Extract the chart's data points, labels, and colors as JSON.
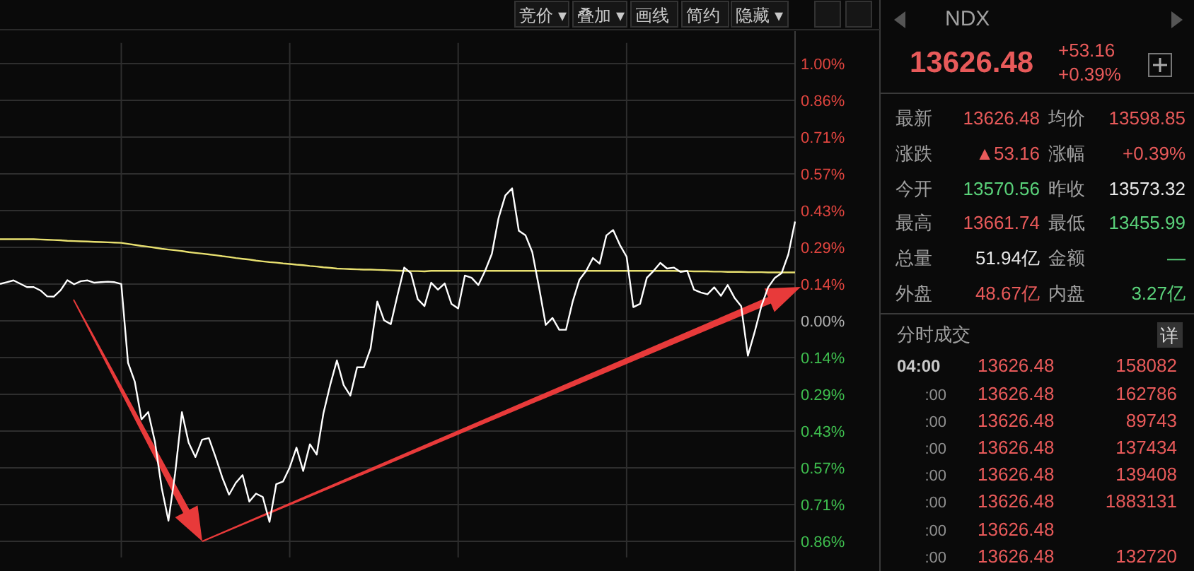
{
  "chart_data": [
    {
      "type": "line",
      "ylim": [
        -0.92,
        1.08
      ],
      "categories": [
        null,
        null,
        null,
        null,
        null,
        null,
        null,
        null,
        null,
        null,
        null,
        null,
        null,
        null,
        null,
        null,
        null,
        null,
        null,
        null,
        null,
        null,
        null,
        null,
        null,
        null,
        null,
        null,
        null,
        null,
        null,
        null,
        null,
        null,
        null,
        null,
        null,
        null,
        null,
        null,
        null,
        null,
        null,
        null,
        null,
        null,
        null,
        null,
        null,
        null,
        null,
        null,
        null,
        null,
        null,
        null,
        null,
        null,
        null,
        null,
        null,
        null,
        null,
        null,
        null,
        null,
        null,
        null,
        null,
        null,
        null,
        null,
        null,
        null,
        null,
        null,
        null,
        null,
        null,
        null,
        null,
        null,
        null,
        null,
        null,
        null,
        null,
        null,
        null,
        null,
        null,
        null,
        null,
        null,
        null,
        null,
        null,
        null,
        null,
        null,
        null,
        null,
        null,
        null,
        null,
        null,
        null,
        null,
        null,
        null,
        null,
        null,
        null,
        null,
        null,
        null,
        null,
        null,
        null
      ],
      "yticks": [
        {
          "value": 1,
          "label": "1.00%"
        },
        {
          "value": 0.8571,
          "label": "0.86%"
        },
        {
          "value": 0.7143,
          "label": "0.71%"
        },
        {
          "value": 0.5714,
          "label": "0.57%"
        },
        {
          "value": 0.4286,
          "label": "0.43%"
        },
        {
          "value": 0.2857,
          "label": "0.29%"
        },
        {
          "value": 0.1429,
          "label": "0.14%"
        },
        {
          "value": 0,
          "label": "0.00%"
        },
        {
          "value": -0.1429,
          "label": "0.14%"
        },
        {
          "value": -0.2857,
          "label": "0.29%"
        },
        {
          "value": -0.4286,
          "label": "0.43%"
        },
        {
          "value": -0.5714,
          "label": "0.57%"
        },
        {
          "value": -0.7143,
          "label": "0.71%"
        },
        {
          "value": -0.8571,
          "label": "0.86%"
        }
      ],
      "grid": true,
      "tick_labels": "y",
      "line_style": "solid",
      "marker": "none",
      "series": [
        {
          "color": "#e8e070",
          "values": [
            0.317,
            0.317,
            0.317,
            0.317,
            0.317,
            0.317,
            0.316,
            0.315,
            0.314,
            0.313,
            0.311,
            0.31,
            0.309,
            0.308,
            0.307,
            0.306,
            0.305,
            0.304,
            0.303,
            0.299,
            0.295,
            0.291,
            0.288,
            0.284,
            0.28,
            0.277,
            0.274,
            0.271,
            0.267,
            0.264,
            0.261,
            0.258,
            0.255,
            0.251,
            0.248,
            0.244,
            0.241,
            0.238,
            0.234,
            0.231,
            0.228,
            0.226,
            0.223,
            0.221,
            0.218,
            0.216,
            0.213,
            0.211,
            0.208,
            0.206,
            0.203,
            0.202,
            0.201,
            0.2,
            0.199,
            0.199,
            0.198,
            0.197,
            0.196,
            0.195,
            0.194,
            0.193,
            0.193,
            0.192,
            0.194,
            0.194,
            0.194,
            0.194,
            0.194,
            0.194,
            0.194,
            0.194,
            0.194,
            0.194,
            0.194,
            0.194,
            0.194,
            0.194,
            0.194,
            0.194,
            0.194,
            0.194,
            0.194,
            0.194,
            0.194,
            0.194,
            0.194,
            0.194,
            0.194,
            0.194,
            0.194,
            0.194,
            0.194,
            0.194,
            0.194,
            0.194,
            0.194,
            0.194,
            0.194,
            0.194,
            0.194,
            0.193,
            0.193,
            0.192,
            0.192,
            0.192,
            0.191,
            0.191,
            0.19,
            0.19,
            0.19,
            0.189,
            0.189,
            0.189,
            0.188,
            0.188,
            0.188,
            0.188,
            0.188
          ]
        },
        {
          "color": "#ffffff",
          "values": [
            0.143,
            0.15,
            0.157,
            0.144,
            0.131,
            0.131,
            0.118,
            0.095,
            0.094,
            0.119,
            0.158,
            0.142,
            0.154,
            0.157,
            0.148,
            0.15,
            0.152,
            0.15,
            0.143,
            -0.163,
            -0.236,
            -0.383,
            -0.355,
            -0.471,
            -0.65,
            -0.777,
            -0.592,
            -0.355,
            -0.474,
            -0.53,
            -0.462,
            -0.456,
            -0.53,
            -0.61,
            -0.676,
            -0.63,
            -0.6,
            -0.703,
            -0.672,
            -0.685,
            -0.782,
            -0.635,
            -0.625,
            -0.57,
            -0.493,
            -0.584,
            -0.48,
            -0.52,
            -0.36,
            -0.25,
            -0.154,
            -0.25,
            -0.291,
            -0.181,
            -0.181,
            -0.108,
            0.075,
            0.002,
            -0.013,
            0.1,
            0.207,
            0.185,
            0.084,
            0.057,
            0.148,
            0.121,
            0.145,
            0.066,
            0.048,
            0.176,
            0.167,
            0.139,
            0.194,
            0.26,
            0.4,
            0.487,
            0.515,
            0.35,
            0.332,
            0.267,
            0.13,
            -0.016,
            0.011,
            -0.035,
            -0.035,
            0.075,
            0.16,
            0.194,
            0.244,
            0.222,
            0.332,
            0.353,
            0.295,
            0.249,
            0.053,
            0.066,
            0.167,
            0.194,
            0.225,
            0.203,
            0.207,
            0.19,
            0.194,
            0.121,
            0.11,
            0.103,
            0.13,
            0.097,
            0.139,
            0.09,
            0.057,
            -0.136,
            -0.044,
            0.057,
            0.13,
            0.167,
            0.185,
            0.258,
            0.386
          ]
        }
      ]
    },
    {
      "type": "other",
      "title": "NDX",
      "annotations": [
        "竞价 ▾",
        "叠加 ▾",
        "画线",
        "简约",
        "隐藏 ▾",
        "13626.48",
        "+53.16",
        "+0.39%",
        "最新",
        "13626.48",
        "均价",
        "13598.85",
        "涨跌",
        "▲53.16",
        "涨幅",
        "+0.39%",
        "今开",
        "13570.56",
        "昨收",
        "13573.32",
        "最高",
        "13661.74",
        "最低",
        "13455.99",
        "总量",
        "51.94亿",
        "金额",
        "—",
        "外盘",
        "48.67亿",
        "内盘",
        "3.27亿",
        "分时成交",
        "详",
        "04:00",
        "13626.48",
        "158082",
        ":00",
        "13626.48",
        "162786",
        ":00",
        "13626.48",
        "89743",
        ":00",
        "13626.48",
        "137434",
        ":00",
        "13626.48",
        "139408",
        ":00",
        "13626.48",
        "1883131",
        ":00",
        "13626.48",
        null,
        ":00",
        "13626.48",
        "132720"
      ],
      "colors": [
        "#c8c8c8",
        "#c8c8c8",
        "#c8c8c8",
        "#c8c8c8",
        "#c8c8c8",
        "#e85a5a",
        "#e85a5a",
        "#e85a5a",
        "#a0a0a0",
        "#e85a5a",
        "#a0a0a0",
        "#e85a5a",
        "#a0a0a0",
        "#e85a5a",
        "#a0a0a0",
        "#e85a5a",
        "#a0a0a0",
        "#5ad27a",
        "#a0a0a0",
        "#e8e8e8",
        "#a0a0a0",
        "#e85a5a",
        "#a0a0a0",
        "#5ad27a",
        "#a0a0a0",
        "#e8e8e8",
        "#a0a0a0",
        "#5ad27a",
        "#a0a0a0",
        "#e85a5a",
        "#a0a0a0",
        "#5ad27a",
        "#a0a0a0",
        "#d8d8d8",
        "#c8c8c8",
        "#e85a5a",
        "#e85a5a",
        "#909090",
        "#e85a5a",
        "#e85a5a",
        "#909090",
        "#e85a5a",
        "#e85a5a",
        "#909090",
        "#e85a5a",
        "#e85a5a",
        "#909090",
        "#e85a5a",
        "#e85a5a",
        "#909090",
        "#e85a5a",
        "#e85a5a",
        "#909090",
        "#e85a5a",
        "#909090",
        "#e85a5a",
        "#e85a5a"
      ]
    }
  ]
}
